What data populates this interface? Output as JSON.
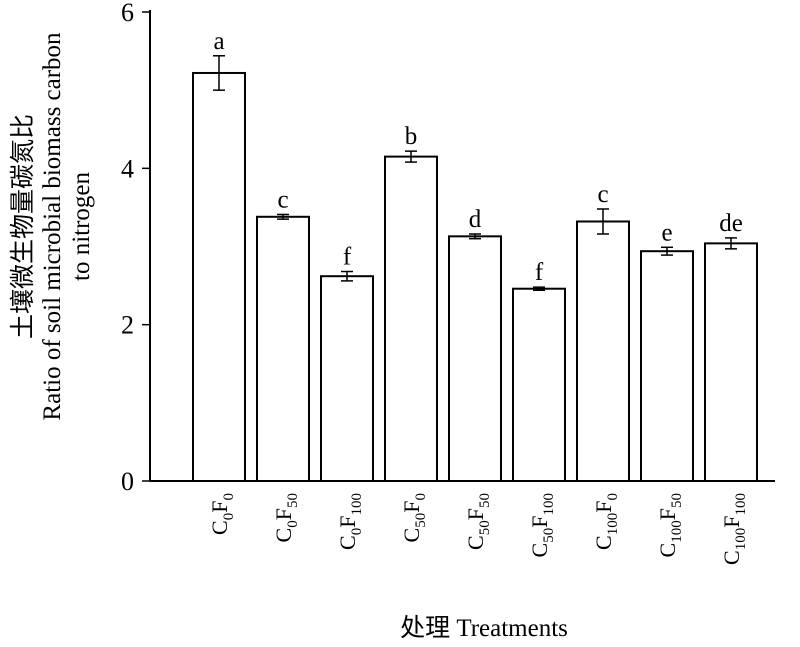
{
  "chart_data": {
    "type": "bar",
    "xlabel": "处理 Treatments",
    "ylabel_cn": "土壤微生物量碳氮比",
    "ylabel_en_line1": "Ratio of soil microbial biomass carbon",
    "ylabel_en_line2": "to nitrogen",
    "ylim": [
      0,
      6
    ],
    "yticks": [
      0,
      2,
      4,
      6
    ],
    "categories": [
      {
        "parts": [
          {
            "t": "C",
            "sub": "0"
          },
          {
            "t": "F",
            "sub": "0"
          }
        ]
      },
      {
        "parts": [
          {
            "t": "C",
            "sub": "0"
          },
          {
            "t": "F",
            "sub": "50"
          }
        ]
      },
      {
        "parts": [
          {
            "t": "C",
            "sub": "0"
          },
          {
            "t": "F",
            "sub": "100"
          }
        ]
      },
      {
        "parts": [
          {
            "t": "C",
            "sub": "50"
          },
          {
            "t": "F",
            "sub": "0"
          }
        ]
      },
      {
        "parts": [
          {
            "t": "C",
            "sub": "50"
          },
          {
            "t": "F",
            "sub": "50"
          }
        ]
      },
      {
        "parts": [
          {
            "t": "C",
            "sub": "50"
          },
          {
            "t": "F",
            "sub": "100"
          }
        ]
      },
      {
        "parts": [
          {
            "t": "C",
            "sub": "100"
          },
          {
            "t": "F",
            "sub": "0"
          }
        ]
      },
      {
        "parts": [
          {
            "t": "C",
            "sub": "100"
          },
          {
            "t": "F",
            "sub": "50"
          }
        ]
      },
      {
        "parts": [
          {
            "t": "C",
            "sub": "100"
          },
          {
            "t": "F",
            "sub": "100"
          }
        ]
      }
    ],
    "values": [
      5.22,
      3.38,
      2.62,
      4.15,
      3.13,
      2.46,
      3.32,
      2.94,
      3.04
    ],
    "errors": [
      0.22,
      0.03,
      0.06,
      0.07,
      0.03,
      0.02,
      0.16,
      0.05,
      0.07
    ],
    "significance": [
      "a",
      "c",
      "f",
      "b",
      "d",
      "f",
      "c",
      "e",
      "de"
    ],
    "grid": false,
    "legend": "none"
  }
}
